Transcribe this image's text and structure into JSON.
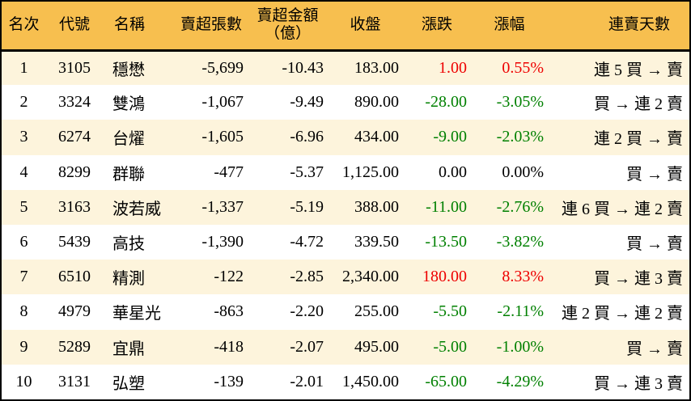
{
  "colors": {
    "header_bg": "#F7BF4F",
    "row_alt_bg": "#FDF4DC",
    "row_bg": "#FFFFFF",
    "up": "#EE0000",
    "down": "#008000",
    "flat": "#000000",
    "border": "#000000",
    "text": "#000000"
  },
  "chart_data": {
    "type": "table",
    "columns": [
      {
        "key": "rank",
        "label": "名次"
      },
      {
        "key": "code",
        "label": "代號"
      },
      {
        "key": "name",
        "label": "名稱"
      },
      {
        "key": "volume",
        "label": "賣超張數"
      },
      {
        "key": "amount",
        "label": "賣超金額\n（億）"
      },
      {
        "key": "close",
        "label": "收盤"
      },
      {
        "key": "change",
        "label": "漲跌"
      },
      {
        "key": "pct",
        "label": "漲幅"
      },
      {
        "key": "streak",
        "label": "連賣天數"
      }
    ],
    "rows": [
      {
        "rank": "1",
        "code": "3105",
        "name": "穩懋",
        "volume": "-5,699",
        "amount": "-10.43",
        "close": "183.00",
        "change": "1.00",
        "pct": "0.55%",
        "streak": "連 5 買 → 賣",
        "dir": "up"
      },
      {
        "rank": "2",
        "code": "3324",
        "name": "雙鴻",
        "volume": "-1,067",
        "amount": "-9.49",
        "close": "890.00",
        "change": "-28.00",
        "pct": "-3.05%",
        "streak": "買 → 連 2 賣",
        "dir": "down"
      },
      {
        "rank": "3",
        "code": "6274",
        "name": "台燿",
        "volume": "-1,605",
        "amount": "-6.96",
        "close": "434.00",
        "change": "-9.00",
        "pct": "-2.03%",
        "streak": "連 2 買 → 賣",
        "dir": "down"
      },
      {
        "rank": "4",
        "code": "8299",
        "name": "群聯",
        "volume": "-477",
        "amount": "-5.37",
        "close": "1,125.00",
        "change": "0.00",
        "pct": "0.00%",
        "streak": "買 → 賣",
        "dir": "flat"
      },
      {
        "rank": "5",
        "code": "3163",
        "name": "波若威",
        "volume": "-1,337",
        "amount": "-5.19",
        "close": "388.00",
        "change": "-11.00",
        "pct": "-2.76%",
        "streak": "連 6 買 → 連 2 賣",
        "dir": "down"
      },
      {
        "rank": "6",
        "code": "5439",
        "name": "高技",
        "volume": "-1,390",
        "amount": "-4.72",
        "close": "339.50",
        "change": "-13.50",
        "pct": "-3.82%",
        "streak": "買 → 賣",
        "dir": "down"
      },
      {
        "rank": "7",
        "code": "6510",
        "name": "精測",
        "volume": "-122",
        "amount": "-2.85",
        "close": "2,340.00",
        "change": "180.00",
        "pct": "8.33%",
        "streak": "買 → 連 3 賣",
        "dir": "up"
      },
      {
        "rank": "8",
        "code": "4979",
        "name": "華星光",
        "volume": "-863",
        "amount": "-2.20",
        "close": "255.00",
        "change": "-5.50",
        "pct": "-2.11%",
        "streak": "連 2 買 → 連 2 賣",
        "dir": "down"
      },
      {
        "rank": "9",
        "code": "5289",
        "name": "宜鼎",
        "volume": "-418",
        "amount": "-2.07",
        "close": "495.00",
        "change": "-5.00",
        "pct": "-1.00%",
        "streak": "買 → 賣",
        "dir": "down"
      },
      {
        "rank": "10",
        "code": "3131",
        "name": "弘塑",
        "volume": "-139",
        "amount": "-2.01",
        "close": "1,450.00",
        "change": "-65.00",
        "pct": "-4.29%",
        "streak": "買 → 連 3 賣",
        "dir": "down"
      }
    ]
  }
}
